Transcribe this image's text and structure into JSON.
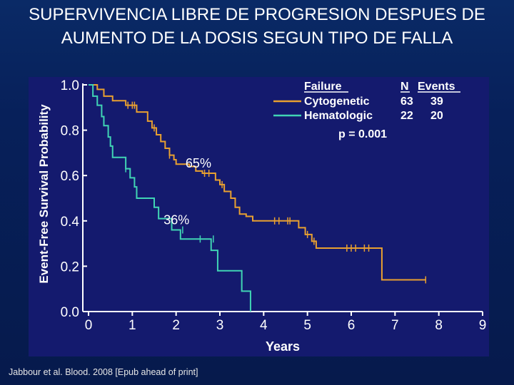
{
  "slide": {
    "title": "SUPERVIVENCIA LIBRE DE PROGRESION DESPUES DE AUMENTO DE LA DOSIS SEGUN TIPO DE FALLA",
    "citation": "Jabbour et al. Blood. 2008 [Epub ahead of print]"
  },
  "colors": {
    "background": "#07205a",
    "plot_panel": "#141a6e",
    "cytogenetic": "#e8a030",
    "hematologic": "#40d4b4",
    "text": "#ffffff"
  },
  "chart_data": {
    "type": "line",
    "subtype": "kaplan-meier step curve",
    "xlabel": "Years",
    "ylabel": "Event-Free Survival Probability",
    "xlim": [
      0,
      9
    ],
    "ylim": [
      0,
      1.0
    ],
    "x_ticks": [
      "0",
      "1",
      "2",
      "3",
      "4",
      "5",
      "6",
      "7",
      "8",
      "9"
    ],
    "y_ticks": [
      "0.0",
      "0.2",
      "0.4",
      "0.6",
      "0.8",
      "1.0"
    ],
    "grid": false,
    "legend": {
      "position": "top-right",
      "header_failure": "Failure",
      "header_n": "N",
      "header_events": "Events",
      "entries": [
        {
          "name": "Cytogenetic",
          "n": "63",
          "events": "39"
        },
        {
          "name": "Hematologic",
          "n": "22",
          "events": "20"
        }
      ],
      "p_value": "p = 0.001"
    },
    "annotations": [
      {
        "text": "65%",
        "x": 2.2,
        "y": 0.66
      },
      {
        "text": "36%",
        "x": 1.7,
        "y": 0.41
      }
    ],
    "series": [
      {
        "name": "Cytogenetic",
        "color": "#e8a030",
        "points": [
          [
            0,
            1.0
          ],
          [
            0.2,
            0.98
          ],
          [
            0.35,
            0.95
          ],
          [
            0.55,
            0.93
          ],
          [
            0.85,
            0.91
          ],
          [
            1.1,
            0.88
          ],
          [
            1.35,
            0.84
          ],
          [
            1.45,
            0.81
          ],
          [
            1.55,
            0.78
          ],
          [
            1.65,
            0.75
          ],
          [
            1.75,
            0.72
          ],
          [
            1.85,
            0.69
          ],
          [
            1.95,
            0.67
          ],
          [
            2.0,
            0.65
          ],
          [
            2.3,
            0.64
          ],
          [
            2.45,
            0.62
          ],
          [
            2.6,
            0.61
          ],
          [
            2.9,
            0.58
          ],
          [
            3.0,
            0.56
          ],
          [
            3.1,
            0.53
          ],
          [
            3.25,
            0.5
          ],
          [
            3.35,
            0.46
          ],
          [
            3.45,
            0.43
          ],
          [
            3.6,
            0.42
          ],
          [
            3.75,
            0.4
          ],
          [
            4.8,
            0.37
          ],
          [
            4.95,
            0.34
          ],
          [
            5.1,
            0.31
          ],
          [
            5.2,
            0.28
          ],
          [
            6.7,
            0.14
          ],
          [
            7.7,
            0.14
          ]
        ],
        "censor_marks": [
          [
            0.9,
            0.91
          ],
          [
            1.0,
            0.91
          ],
          [
            1.05,
            0.91
          ],
          [
            1.5,
            0.81
          ],
          [
            1.85,
            0.69
          ],
          [
            2.65,
            0.61
          ],
          [
            2.75,
            0.61
          ],
          [
            3.05,
            0.56
          ],
          [
            4.25,
            0.4
          ],
          [
            4.35,
            0.4
          ],
          [
            4.55,
            0.4
          ],
          [
            4.6,
            0.4
          ],
          [
            5.0,
            0.34
          ],
          [
            5.15,
            0.31
          ],
          [
            5.9,
            0.28
          ],
          [
            6.0,
            0.28
          ],
          [
            6.1,
            0.28
          ],
          [
            6.3,
            0.28
          ],
          [
            6.4,
            0.28
          ],
          [
            7.7,
            0.14
          ]
        ]
      },
      {
        "name": "Hematologic",
        "color": "#40d4b4",
        "points": [
          [
            0,
            1.0
          ],
          [
            0.1,
            0.95
          ],
          [
            0.2,
            0.91
          ],
          [
            0.3,
            0.86
          ],
          [
            0.35,
            0.82
          ],
          [
            0.45,
            0.77
          ],
          [
            0.5,
            0.73
          ],
          [
            0.55,
            0.68
          ],
          [
            0.85,
            0.63
          ],
          [
            0.95,
            0.59
          ],
          [
            1.05,
            0.55
          ],
          [
            1.1,
            0.5
          ],
          [
            1.5,
            0.46
          ],
          [
            1.6,
            0.41
          ],
          [
            1.9,
            0.36
          ],
          [
            2.1,
            0.32
          ],
          [
            2.8,
            0.27
          ],
          [
            2.95,
            0.18
          ],
          [
            3.5,
            0.09
          ],
          [
            3.7,
            0.0
          ]
        ],
        "censor_marks": [
          [
            0.85,
            0.63
          ],
          [
            2.15,
            0.36
          ],
          [
            2.55,
            0.32
          ],
          [
            2.85,
            0.32
          ],
          [
            2.95,
            0.25
          ]
        ]
      }
    ]
  }
}
